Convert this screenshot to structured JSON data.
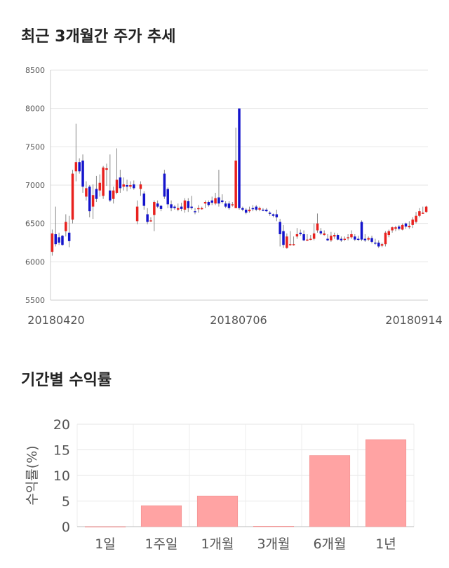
{
  "sections": {
    "price_title": "최근 3개월간 주가 추세",
    "returns_title": "기간별 수익률"
  },
  "chart_data": [
    {
      "type": "candlestick",
      "title": "최근 3개월간 주가 추세",
      "ylim": [
        5500,
        8500
      ],
      "y_ticks": [
        5500,
        6000,
        6500,
        7000,
        7500,
        8000,
        8500
      ],
      "x_tick_labels": [
        "20180420",
        "20180706",
        "20180914"
      ],
      "grid": true,
      "up_color": "#e8211e",
      "down_color": "#1414cc",
      "candles": [
        [
          6130,
          6370,
          6080,
          6420
        ],
        [
          6360,
          6230,
          6200,
          6720
        ],
        [
          6320,
          6250,
          6220,
          6380
        ],
        [
          6340,
          6220,
          6210,
          6350
        ],
        [
          6400,
          6520,
          6330,
          6620
        ],
        [
          6380,
          6270,
          6190,
          6600
        ],
        [
          6550,
          7150,
          6500,
          7200
        ],
        [
          7180,
          7300,
          7050,
          7800
        ],
        [
          7300,
          7180,
          7150,
          7350
        ],
        [
          7320,
          6980,
          6900,
          7400
        ],
        [
          6850,
          6960,
          6800,
          7050
        ],
        [
          6980,
          6660,
          6580,
          7000
        ],
        [
          6720,
          6870,
          6560,
          7010
        ],
        [
          6950,
          6820,
          6780,
          7120
        ],
        [
          6930,
          7030,
          6850,
          7140
        ],
        [
          6860,
          7230,
          6820,
          7250
        ],
        [
          7200,
          7220,
          6990,
          7280
        ],
        [
          6930,
          6800,
          6780,
          7400
        ],
        [
          6820,
          6930,
          6760,
          6980
        ],
        [
          6900,
          7070,
          6880,
          7480
        ],
        [
          7100,
          6960,
          6900,
          7200
        ],
        [
          6980,
          7010,
          6930,
          7100
        ],
        [
          7000,
          6980,
          6920,
          7070
        ],
        [
          6980,
          7000,
          6950,
          7050
        ],
        [
          7010,
          6960,
          6940,
          7060
        ],
        [
          6530,
          6720,
          6490,
          6800
        ],
        [
          6950,
          7010,
          6860,
          7050
        ],
        [
          6890,
          6730,
          6680,
          6920
        ],
        [
          6620,
          6520,
          6490,
          6700
        ],
        [
          6530,
          6540,
          6520,
          6580
        ],
        [
          6610,
          6780,
          6400,
          6800
        ],
        [
          6760,
          6720,
          6700,
          6800
        ],
        [
          6730,
          6690,
          6660,
          6740
        ],
        [
          7150,
          6850,
          6820,
          7200
        ],
        [
          6950,
          6750,
          6700,
          6970
        ],
        [
          6750,
          6700,
          6660,
          6800
        ],
        [
          6720,
          6700,
          6680,
          6740
        ],
        [
          6680,
          6700,
          6660,
          6760
        ],
        [
          6720,
          6690,
          6660,
          6770
        ],
        [
          6680,
          6800,
          6640,
          6830
        ],
        [
          6790,
          6700,
          6650,
          6830
        ],
        [
          6720,
          6700,
          6680,
          6860
        ],
        [
          6660,
          6650,
          6620,
          6700
        ],
        [
          6690,
          6700,
          6640,
          6740
        ],
        [
          6700,
          6700,
          6680,
          6720
        ],
        [
          6760,
          6780,
          6700,
          6800
        ],
        [
          6780,
          6740,
          6720,
          6800
        ],
        [
          6800,
          6770,
          6740,
          6850
        ],
        [
          6760,
          6830,
          6740,
          6900
        ],
        [
          6840,
          6760,
          6720,
          7200
        ],
        [
          6800,
          6780,
          6760,
          6880
        ],
        [
          6760,
          6720,
          6700,
          6790
        ],
        [
          6760,
          6700,
          6680,
          6790
        ],
        [
          6740,
          6750,
          6720,
          6780
        ],
        [
          6700,
          7320,
          6700,
          7750
        ],
        [
          8000,
          6700,
          6680,
          8000
        ],
        [
          6700,
          6680,
          6660,
          6720
        ],
        [
          6680,
          6640,
          6620,
          6700
        ],
        [
          6660,
          6680,
          6640,
          6720
        ],
        [
          6700,
          6690,
          6660,
          6740
        ],
        [
          6720,
          6680,
          6660,
          6740
        ],
        [
          6680,
          6700,
          6660,
          6720
        ],
        [
          6680,
          6670,
          6660,
          6700
        ],
        [
          6680,
          6660,
          6650,
          6700
        ],
        [
          6640,
          6630,
          6600,
          6660
        ],
        [
          6620,
          6600,
          6580,
          6630
        ],
        [
          6620,
          6580,
          6530,
          6680
        ],
        [
          6520,
          6360,
          6200,
          6560
        ],
        [
          6400,
          6220,
          6180,
          6480
        ],
        [
          6180,
          6330,
          6170,
          6370
        ],
        [
          6220,
          6230,
          6210,
          6400
        ],
        [
          6220,
          6230,
          6210,
          6330
        ],
        [
          6330,
          6360,
          6300,
          6440
        ],
        [
          6380,
          6360,
          6340,
          6420
        ],
        [
          6360,
          6280,
          6270,
          6410
        ],
        [
          6290,
          6290,
          6270,
          6360
        ],
        [
          6290,
          6300,
          6280,
          6350
        ],
        [
          6300,
          6370,
          6280,
          6500
        ],
        [
          6410,
          6500,
          6380,
          6630
        ],
        [
          6400,
          6370,
          6350,
          6440
        ],
        [
          6350,
          6370,
          6340,
          6410
        ],
        [
          6300,
          6280,
          6270,
          6360
        ],
        [
          6280,
          6340,
          6260,
          6390
        ],
        [
          6330,
          6350,
          6300,
          6380
        ],
        [
          6350,
          6290,
          6280,
          6370
        ],
        [
          6300,
          6280,
          6260,
          6330
        ],
        [
          6290,
          6300,
          6270,
          6330
        ],
        [
          6310,
          6320,
          6280,
          6360
        ],
        [
          6320,
          6360,
          6300,
          6410
        ],
        [
          6330,
          6290,
          6270,
          6360
        ],
        [
          6300,
          6290,
          6270,
          6340
        ],
        [
          6520,
          6290,
          6270,
          6540
        ],
        [
          6300,
          6280,
          6260,
          6360
        ],
        [
          6290,
          6310,
          6270,
          6330
        ],
        [
          6310,
          6260,
          6240,
          6340
        ],
        [
          6250,
          6240,
          6220,
          6300
        ],
        [
          6250,
          6200,
          6180,
          6280
        ],
        [
          6210,
          6230,
          6190,
          6250
        ],
        [
          6230,
          6380,
          6200,
          6400
        ],
        [
          6350,
          6400,
          6320,
          6420
        ],
        [
          6410,
          6450,
          6380,
          6460
        ],
        [
          6430,
          6450,
          6400,
          6470
        ],
        [
          6460,
          6430,
          6410,
          6480
        ],
        [
          6420,
          6480,
          6410,
          6500
        ],
        [
          6500,
          6460,
          6430,
          6510
        ],
        [
          6450,
          6470,
          6430,
          6530
        ],
        [
          6480,
          6550,
          6440,
          6580
        ],
        [
          6520,
          6600,
          6500,
          6650
        ],
        [
          6600,
          6660,
          6580,
          6700
        ],
        [
          6640,
          6640,
          6630,
          6720
        ],
        [
          6650,
          6720,
          6640,
          6730
        ]
      ]
    },
    {
      "type": "bar",
      "title": "기간별 수익률",
      "ylabel": "수익률(%)",
      "ylim": [
        0,
        20
      ],
      "y_ticks": [
        0,
        5,
        10,
        15,
        20
      ],
      "categories": [
        "1일",
        "1주일",
        "1개월",
        "3개월",
        "6개월",
        "1년"
      ],
      "values": [
        0.0,
        4.1,
        6.0,
        0.1,
        13.9,
        17.0
      ],
      "bar_color": "#ffa3a3",
      "grid": true
    }
  ]
}
